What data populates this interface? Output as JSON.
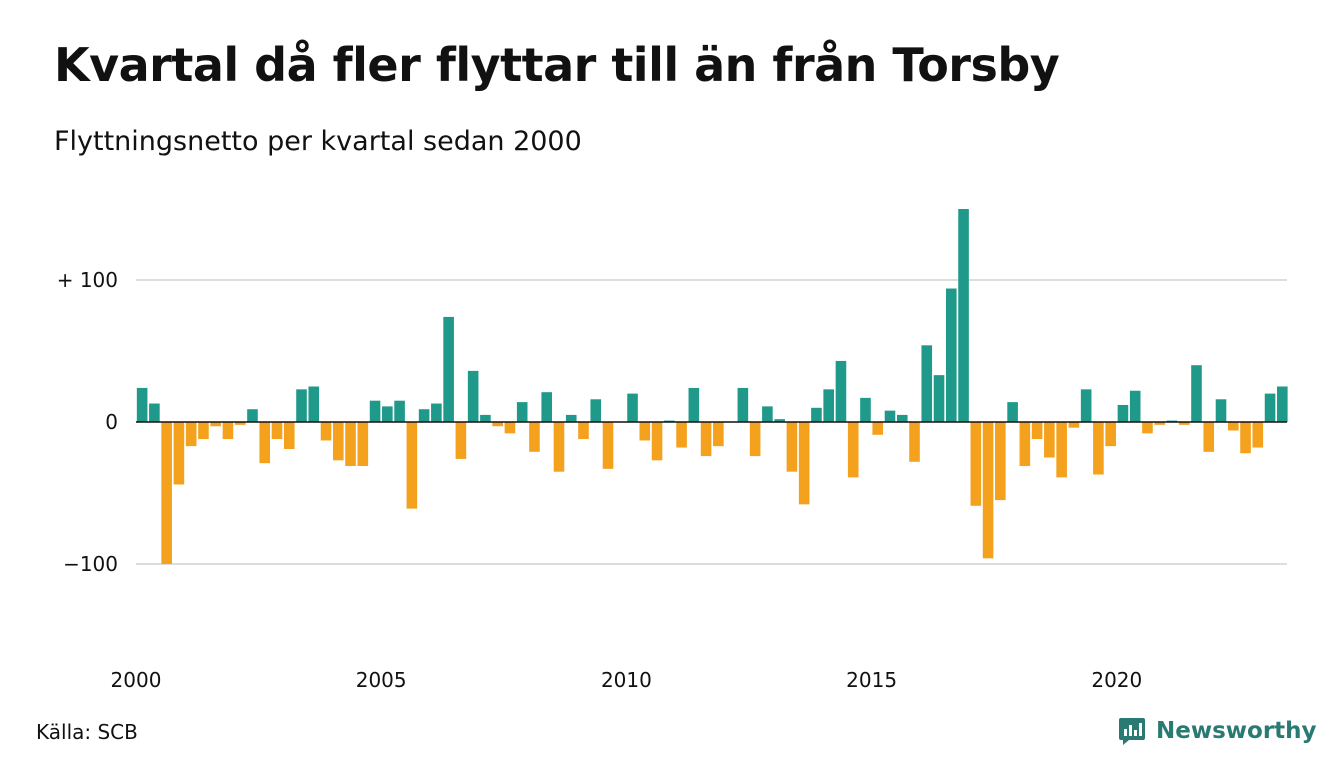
{
  "title": "Kvartal då fler flyttar till än från Torsby",
  "subtitle": "Flyttningsnetto per kvartal sedan 2000",
  "source": "Källa: SCB",
  "brand": {
    "name": "Newsworthy",
    "icon": "newsworthy-logo-icon",
    "color": "#2a7a74"
  },
  "colors": {
    "positive": "#1f9a8a",
    "negative": "#f4a11e",
    "grid": "#dddddd",
    "zero": "#111111"
  },
  "chart_data": {
    "type": "bar",
    "ylim": [
      -160,
      160
    ],
    "grid": true,
    "yticks": [
      {
        "value": 100,
        "label": "+ 100"
      },
      {
        "value": 0,
        "label": "0"
      },
      {
        "value": -100,
        "label": "−100"
      }
    ],
    "xticks": [
      {
        "value": 2000,
        "label": "2000"
      },
      {
        "value": 2005,
        "label": "2005"
      },
      {
        "value": 2010,
        "label": "2010"
      },
      {
        "value": 2015,
        "label": "2015"
      },
      {
        "value": 2020,
        "label": "2020"
      }
    ],
    "x_start": "2000 Q1",
    "values": [
      24,
      13,
      -100,
      -44,
      -17,
      -12,
      -3,
      -12,
      -2,
      9,
      -29,
      -12,
      -19,
      23,
      25,
      -13,
      -27,
      -31,
      -31,
      15,
      11,
      15,
      -61,
      9,
      13,
      74,
      -26,
      36,
      5,
      -3,
      -8,
      14,
      -21,
      21,
      -35,
      5,
      -12,
      16,
      -33,
      0,
      20,
      -13,
      -27,
      1,
      -18,
      24,
      -24,
      -17,
      0,
      24,
      -24,
      11,
      2,
      -35,
      -58,
      10,
      23,
      43,
      -39,
      17,
      -9,
      8,
      5,
      -28,
      54,
      33,
      94,
      150,
      -59,
      -96,
      -55,
      14,
      -31,
      -12,
      -25,
      -39,
      -4,
      23,
      -37,
      -17,
      12,
      22,
      -8,
      -2,
      1,
      -2,
      40,
      -21,
      16,
      -6,
      -22,
      -18,
      20,
      25
    ]
  }
}
